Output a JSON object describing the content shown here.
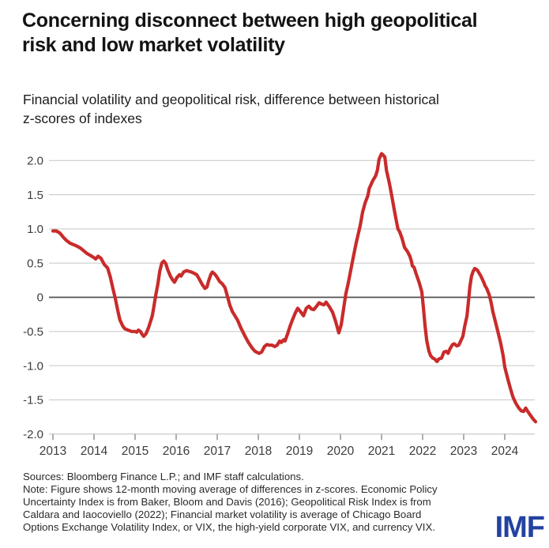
{
  "header": {
    "title_lines": [
      "Concerning disconnect between high geopolitical",
      "risk and low market volatility"
    ],
    "subtitle_lines": [
      "Financial volatility and geopolitical risk, difference between historical",
      "z-scores of indexes"
    ]
  },
  "chart_data": {
    "type": "line",
    "title": "Concerning disconnect between high geopolitical risk and low market volatility",
    "subtitle": "Financial volatility and geopolitical risk, difference between historical z-scores of indexes",
    "xlabel": "",
    "ylabel": "",
    "xlim": [
      2012.9,
      2024.85
    ],
    "ylim": [
      -2.0,
      2.2
    ],
    "grid": "horizontal",
    "legend": "none",
    "zero_line": true,
    "y_tick_values": [
      2.0,
      1.5,
      1.0,
      0.5,
      0,
      -0.5,
      -1.0,
      -1.5,
      -2.0
    ],
    "y_tick_labels": [
      "2.0",
      "1.5",
      "1.0",
      "0.5",
      "0",
      "-0.5",
      "-1.0",
      "-1.5",
      "-2.0"
    ],
    "x_tick_values": [
      2013,
      2014,
      2015,
      2016,
      2017,
      2018,
      2019,
      2020,
      2021,
      2022,
      2023,
      2024
    ],
    "x_tick_labels": [
      "2013",
      "2014",
      "2015",
      "2016",
      "2017",
      "2018",
      "2019",
      "2020",
      "2021",
      "2022",
      "2023",
      "2024"
    ],
    "series": [
      {
        "name": "Difference between historical z-scores of indexes (12-month moving average)",
        "color": "#c92b2b",
        "points": [
          [
            2013.0,
            0.97
          ],
          [
            2013.08,
            0.97
          ],
          [
            2013.17,
            0.94
          ],
          [
            2013.25,
            0.88
          ],
          [
            2013.33,
            0.83
          ],
          [
            2013.42,
            0.79
          ],
          [
            2013.5,
            0.77
          ],
          [
            2013.58,
            0.75
          ],
          [
            2013.67,
            0.72
          ],
          [
            2013.75,
            0.68
          ],
          [
            2013.83,
            0.64
          ],
          [
            2013.92,
            0.61
          ],
          [
            2014.0,
            0.58
          ],
          [
            2014.04,
            0.56
          ],
          [
            2014.1,
            0.6
          ],
          [
            2014.17,
            0.57
          ],
          [
            2014.25,
            0.48
          ],
          [
            2014.33,
            0.43
          ],
          [
            2014.4,
            0.29
          ],
          [
            2014.46,
            0.13
          ],
          [
            2014.52,
            -0.02
          ],
          [
            2014.58,
            -0.2
          ],
          [
            2014.63,
            -0.33
          ],
          [
            2014.7,
            -0.42
          ],
          [
            2014.75,
            -0.46
          ],
          [
            2014.83,
            -0.48
          ],
          [
            2014.92,
            -0.5
          ],
          [
            2015.0,
            -0.5
          ],
          [
            2015.04,
            -0.51
          ],
          [
            2015.08,
            -0.48
          ],
          [
            2015.13,
            -0.5
          ],
          [
            2015.17,
            -0.54
          ],
          [
            2015.21,
            -0.57
          ],
          [
            2015.27,
            -0.53
          ],
          [
            2015.33,
            -0.44
          ],
          [
            2015.42,
            -0.27
          ],
          [
            2015.46,
            -0.13
          ],
          [
            2015.5,
            0.02
          ],
          [
            2015.56,
            0.21
          ],
          [
            2015.6,
            0.38
          ],
          [
            2015.65,
            0.5
          ],
          [
            2015.7,
            0.53
          ],
          [
            2015.75,
            0.49
          ],
          [
            2015.79,
            0.41
          ],
          [
            2015.86,
            0.31
          ],
          [
            2015.92,
            0.25
          ],
          [
            2015.96,
            0.22
          ],
          [
            2016.02,
            0.29
          ],
          [
            2016.08,
            0.33
          ],
          [
            2016.12,
            0.31
          ],
          [
            2016.18,
            0.37
          ],
          [
            2016.25,
            0.39
          ],
          [
            2016.31,
            0.38
          ],
          [
            2016.37,
            0.37
          ],
          [
            2016.44,
            0.35
          ],
          [
            2016.5,
            0.33
          ],
          [
            2016.56,
            0.27
          ],
          [
            2016.63,
            0.19
          ],
          [
            2016.7,
            0.13
          ],
          [
            2016.75,
            0.15
          ],
          [
            2016.79,
            0.24
          ],
          [
            2016.85,
            0.34
          ],
          [
            2016.88,
            0.37
          ],
          [
            2016.94,
            0.34
          ],
          [
            2017.0,
            0.29
          ],
          [
            2017.06,
            0.23
          ],
          [
            2017.12,
            0.2
          ],
          [
            2017.19,
            0.14
          ],
          [
            2017.25,
            0.01
          ],
          [
            2017.31,
            -0.12
          ],
          [
            2017.37,
            -0.21
          ],
          [
            2017.44,
            -0.28
          ],
          [
            2017.5,
            -0.34
          ],
          [
            2017.57,
            -0.44
          ],
          [
            2017.67,
            -0.56
          ],
          [
            2017.76,
            -0.66
          ],
          [
            2017.86,
            -0.75
          ],
          [
            2017.92,
            -0.79
          ],
          [
            2018.02,
            -0.82
          ],
          [
            2018.08,
            -0.8
          ],
          [
            2018.15,
            -0.72
          ],
          [
            2018.21,
            -0.69
          ],
          [
            2018.27,
            -0.7
          ],
          [
            2018.33,
            -0.7
          ],
          [
            2018.4,
            -0.72
          ],
          [
            2018.46,
            -0.7
          ],
          [
            2018.52,
            -0.64
          ],
          [
            2018.56,
            -0.66
          ],
          [
            2018.62,
            -0.62
          ],
          [
            2018.65,
            -0.64
          ],
          [
            2018.71,
            -0.54
          ],
          [
            2018.77,
            -0.43
          ],
          [
            2018.83,
            -0.33
          ],
          [
            2018.9,
            -0.23
          ],
          [
            2018.96,
            -0.16
          ],
          [
            2019.04,
            -0.22
          ],
          [
            2019.1,
            -0.27
          ],
          [
            2019.17,
            -0.16
          ],
          [
            2019.23,
            -0.13
          ],
          [
            2019.29,
            -0.17
          ],
          [
            2019.35,
            -0.18
          ],
          [
            2019.42,
            -0.13
          ],
          [
            2019.48,
            -0.08
          ],
          [
            2019.54,
            -0.1
          ],
          [
            2019.6,
            -0.11
          ],
          [
            2019.65,
            -0.07
          ],
          [
            2019.73,
            -0.14
          ],
          [
            2019.81,
            -0.22
          ],
          [
            2019.88,
            -0.35
          ],
          [
            2019.96,
            -0.52
          ],
          [
            2020.02,
            -0.4
          ],
          [
            2020.08,
            -0.15
          ],
          [
            2020.13,
            0.05
          ],
          [
            2020.19,
            0.21
          ],
          [
            2020.29,
            0.52
          ],
          [
            2020.38,
            0.79
          ],
          [
            2020.48,
            1.05
          ],
          [
            2020.54,
            1.25
          ],
          [
            2020.6,
            1.38
          ],
          [
            2020.67,
            1.49
          ],
          [
            2020.7,
            1.59
          ],
          [
            2020.73,
            1.63
          ],
          [
            2020.79,
            1.71
          ],
          [
            2020.86,
            1.78
          ],
          [
            2020.9,
            1.86
          ],
          [
            2020.94,
            2.02
          ],
          [
            2021.0,
            2.1
          ],
          [
            2021.04,
            2.08
          ],
          [
            2021.08,
            2.05
          ],
          [
            2021.12,
            1.86
          ],
          [
            2021.19,
            1.67
          ],
          [
            2021.25,
            1.48
          ],
          [
            2021.31,
            1.28
          ],
          [
            2021.37,
            1.09
          ],
          [
            2021.4,
            1.0
          ],
          [
            2021.44,
            0.96
          ],
          [
            2021.5,
            0.86
          ],
          [
            2021.56,
            0.73
          ],
          [
            2021.63,
            0.67
          ],
          [
            2021.69,
            0.6
          ],
          [
            2021.73,
            0.52
          ],
          [
            2021.75,
            0.46
          ],
          [
            2021.79,
            0.44
          ],
          [
            2021.85,
            0.33
          ],
          [
            2021.92,
            0.21
          ],
          [
            2021.98,
            0.08
          ],
          [
            2022.02,
            -0.15
          ],
          [
            2022.06,
            -0.42
          ],
          [
            2022.1,
            -0.63
          ],
          [
            2022.15,
            -0.78
          ],
          [
            2022.19,
            -0.85
          ],
          [
            2022.25,
            -0.89
          ],
          [
            2022.29,
            -0.9
          ],
          [
            2022.35,
            -0.94
          ],
          [
            2022.4,
            -0.9
          ],
          [
            2022.46,
            -0.89
          ],
          [
            2022.52,
            -0.8
          ],
          [
            2022.58,
            -0.79
          ],
          [
            2022.62,
            -0.82
          ],
          [
            2022.67,
            -0.75
          ],
          [
            2022.73,
            -0.69
          ],
          [
            2022.77,
            -0.68
          ],
          [
            2022.83,
            -0.71
          ],
          [
            2022.88,
            -0.7
          ],
          [
            2022.92,
            -0.65
          ],
          [
            2022.98,
            -0.57
          ],
          [
            2023.02,
            -0.44
          ],
          [
            2023.08,
            -0.27
          ],
          [
            2023.12,
            -0.04
          ],
          [
            2023.15,
            0.15
          ],
          [
            2023.19,
            0.31
          ],
          [
            2023.23,
            0.38
          ],
          [
            2023.27,
            0.42
          ],
          [
            2023.33,
            0.4
          ],
          [
            2023.37,
            0.36
          ],
          [
            2023.42,
            0.31
          ],
          [
            2023.48,
            0.23
          ],
          [
            2023.52,
            0.17
          ],
          [
            2023.56,
            0.13
          ],
          [
            2023.62,
            0.04
          ],
          [
            2023.67,
            -0.08
          ],
          [
            2023.71,
            -0.21
          ],
          [
            2023.77,
            -0.35
          ],
          [
            2023.83,
            -0.5
          ],
          [
            2023.9,
            -0.67
          ],
          [
            2023.96,
            -0.85
          ],
          [
            2024.0,
            -1.02
          ],
          [
            2024.08,
            -1.21
          ],
          [
            2024.14,
            -1.34
          ],
          [
            2024.2,
            -1.46
          ],
          [
            2024.27,
            -1.55
          ],
          [
            2024.33,
            -1.61
          ],
          [
            2024.4,
            -1.66
          ],
          [
            2024.46,
            -1.67
          ],
          [
            2024.51,
            -1.62
          ],
          [
            2024.56,
            -1.67
          ],
          [
            2024.62,
            -1.72
          ],
          [
            2024.69,
            -1.78
          ],
          [
            2024.75,
            -1.82
          ]
        ]
      }
    ]
  },
  "footer": {
    "lines": [
      "Sources: Bloomberg Finance L.P.; and IMF staff calculations.",
      "Note: Figure shows 12-month moving average of differences in z-scores. Economic Policy",
      "Uncertainty Index is from Baker, Bloom and Davis (2016); Geopolitical Risk Index is from",
      "Caldara and Iaocoviello (2022); Financial market volatility is average of Chicago Board",
      "Options Exchange Volatility Index, or VIX, the high-yield corporate VIX, and currency VIX."
    ],
    "logo_text": "IMF"
  },
  "colors": {
    "line_red": "#c92b2b",
    "grid": "#cccccc",
    "zero_line": "#505050",
    "bottom_axis": "#c4c4c4",
    "tick_mark": "#9a9a9a",
    "axis_text": "#3c3c3c",
    "title_text": "#131313",
    "body_text": "#2a2a2a",
    "logo_blue": "#2342a1"
  }
}
